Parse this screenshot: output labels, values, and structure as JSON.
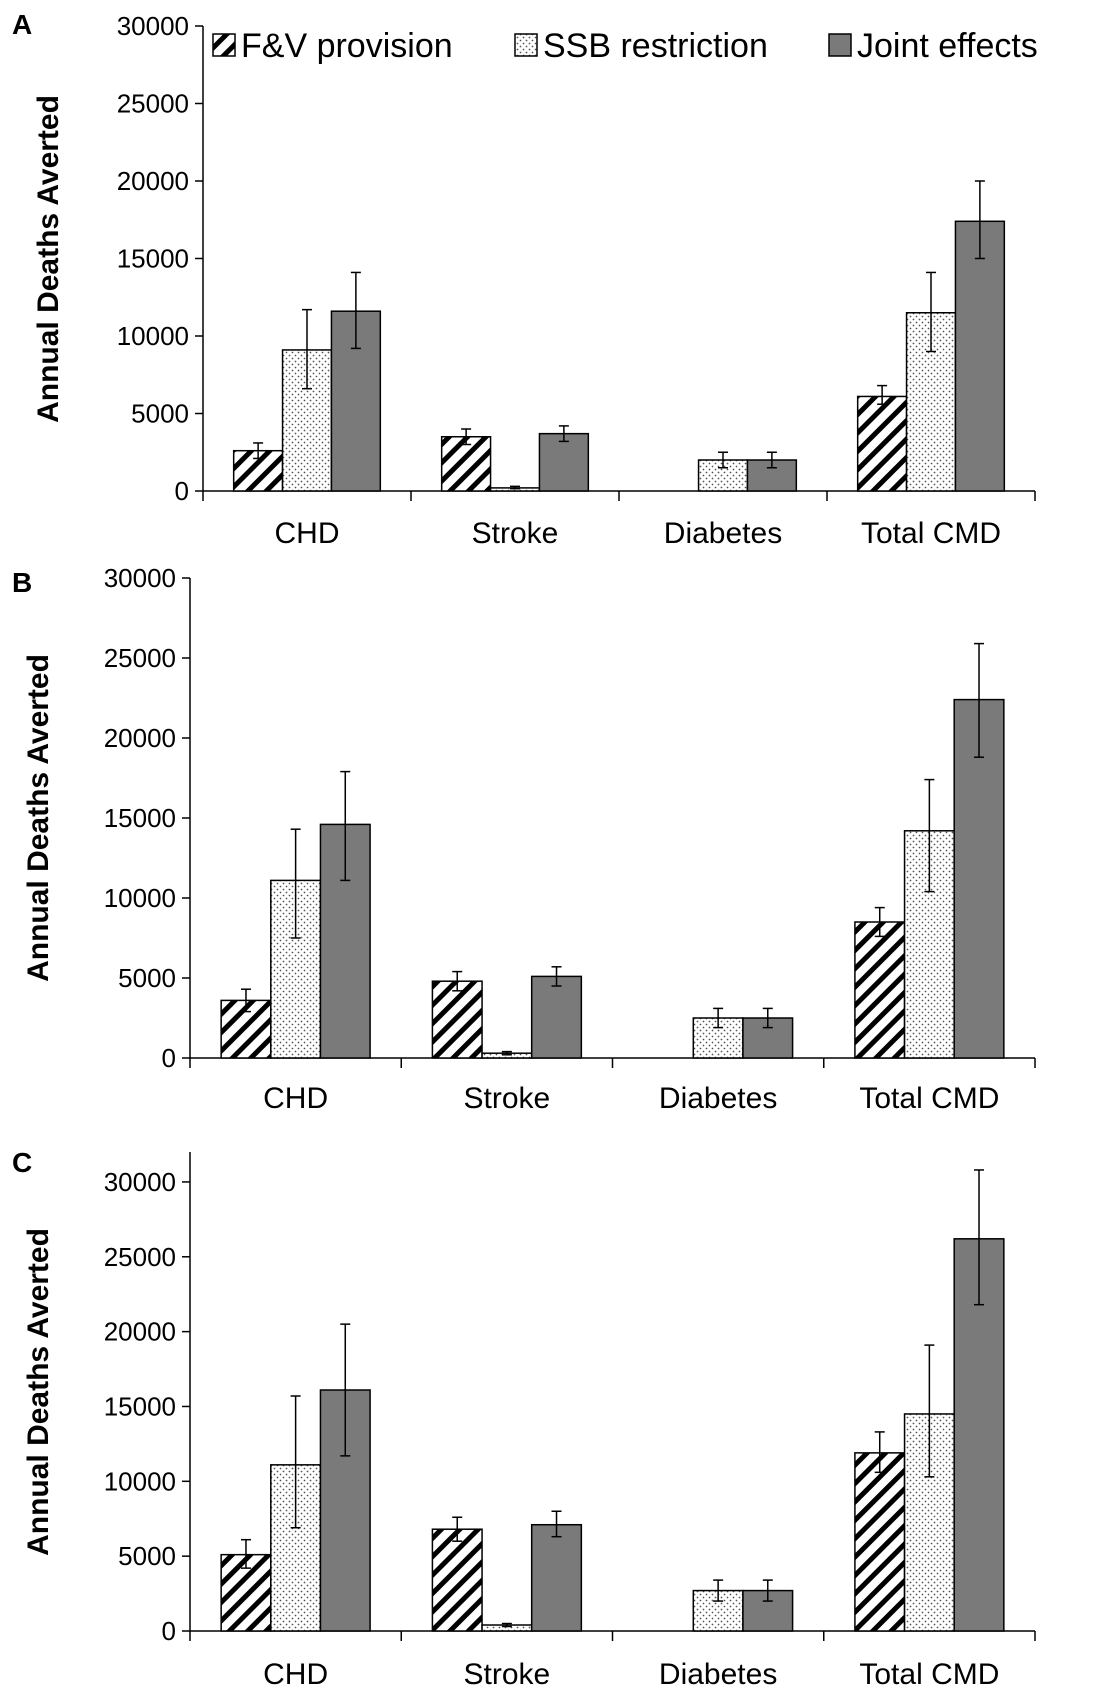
{
  "legend": {
    "items": [
      {
        "label": "F&V provision",
        "pattern": "hatch"
      },
      {
        "label": "SSB restriction",
        "pattern": "dots"
      },
      {
        "label": "Joint effects",
        "pattern": "solid"
      }
    ]
  },
  "colors": {
    "solid": "#7a7a7a",
    "stroke": "#000000",
    "dots": "#555555"
  },
  "chart_data": [
    {
      "panel_label": "A",
      "type": "bar",
      "ylabel": "Annual Deaths Averted",
      "ylim": [
        0,
        30000
      ],
      "yticks": [
        0,
        5000,
        10000,
        15000,
        20000,
        25000,
        30000
      ],
      "categories": [
        "CHD",
        "Stroke",
        "Diabetes",
        "Total CMD"
      ],
      "legend_position": "top",
      "series": [
        {
          "name": "F&V provision",
          "values": [
            2600,
            3500,
            null,
            6100
          ],
          "err_low": [
            2100,
            3000,
            null,
            5600
          ],
          "err_high": [
            3100,
            4000,
            null,
            6800
          ]
        },
        {
          "name": "SSB restriction",
          "values": [
            9100,
            200,
            2000,
            11500
          ],
          "err_low": [
            6600,
            150,
            1500,
            9000
          ],
          "err_high": [
            11700,
            300,
            2500,
            14100
          ]
        },
        {
          "name": "Joint effects",
          "values": [
            11600,
            3700,
            2000,
            17400
          ],
          "err_low": [
            9200,
            3200,
            1500,
            15000
          ],
          "err_high": [
            14100,
            4200,
            2500,
            20000
          ]
        }
      ]
    },
    {
      "panel_label": "B",
      "type": "bar",
      "ylabel": "Annual Deaths Averted",
      "ylim": [
        0,
        30000
      ],
      "yticks": [
        0,
        5000,
        10000,
        15000,
        20000,
        25000,
        30000
      ],
      "categories": [
        "CHD",
        "Stroke",
        "Diabetes",
        "Total CMD"
      ],
      "series": [
        {
          "name": "F&V provision",
          "values": [
            3600,
            4800,
            null,
            8500
          ],
          "err_low": [
            2900,
            4200,
            null,
            7600
          ],
          "err_high": [
            4300,
            5400,
            null,
            9400
          ]
        },
        {
          "name": "SSB restriction",
          "values": [
            11100,
            300,
            2500,
            14200
          ],
          "err_low": [
            7500,
            200,
            1900,
            10400
          ],
          "err_high": [
            14300,
            400,
            3100,
            17400
          ]
        },
        {
          "name": "Joint effects",
          "values": [
            14600,
            5100,
            2500,
            22400
          ],
          "err_low": [
            11100,
            4500,
            1900,
            18800
          ],
          "err_high": [
            17900,
            5700,
            3100,
            25900
          ]
        }
      ]
    },
    {
      "panel_label": "C",
      "type": "bar",
      "ylabel": "Annual Deaths Averted",
      "ylim": [
        0,
        32000
      ],
      "yticks": [
        0,
        5000,
        10000,
        15000,
        20000,
        25000,
        30000
      ],
      "categories": [
        "CHD",
        "Stroke",
        "Diabetes",
        "Total CMD"
      ],
      "series": [
        {
          "name": "F&V provision",
          "values": [
            5100,
            6800,
            null,
            11900
          ],
          "err_low": [
            4200,
            6000,
            null,
            10600
          ],
          "err_high": [
            6100,
            7600,
            null,
            13300
          ]
        },
        {
          "name": "SSB restriction",
          "values": [
            11100,
            400,
            2700,
            14500
          ],
          "err_low": [
            6900,
            300,
            2000,
            10300
          ],
          "err_high": [
            15700,
            500,
            3400,
            19100
          ]
        },
        {
          "name": "Joint effects",
          "values": [
            16100,
            7100,
            2700,
            26200
          ],
          "err_low": [
            11700,
            6300,
            2000,
            21800
          ],
          "err_high": [
            20500,
            8000,
            3400,
            30800
          ]
        }
      ]
    }
  ]
}
